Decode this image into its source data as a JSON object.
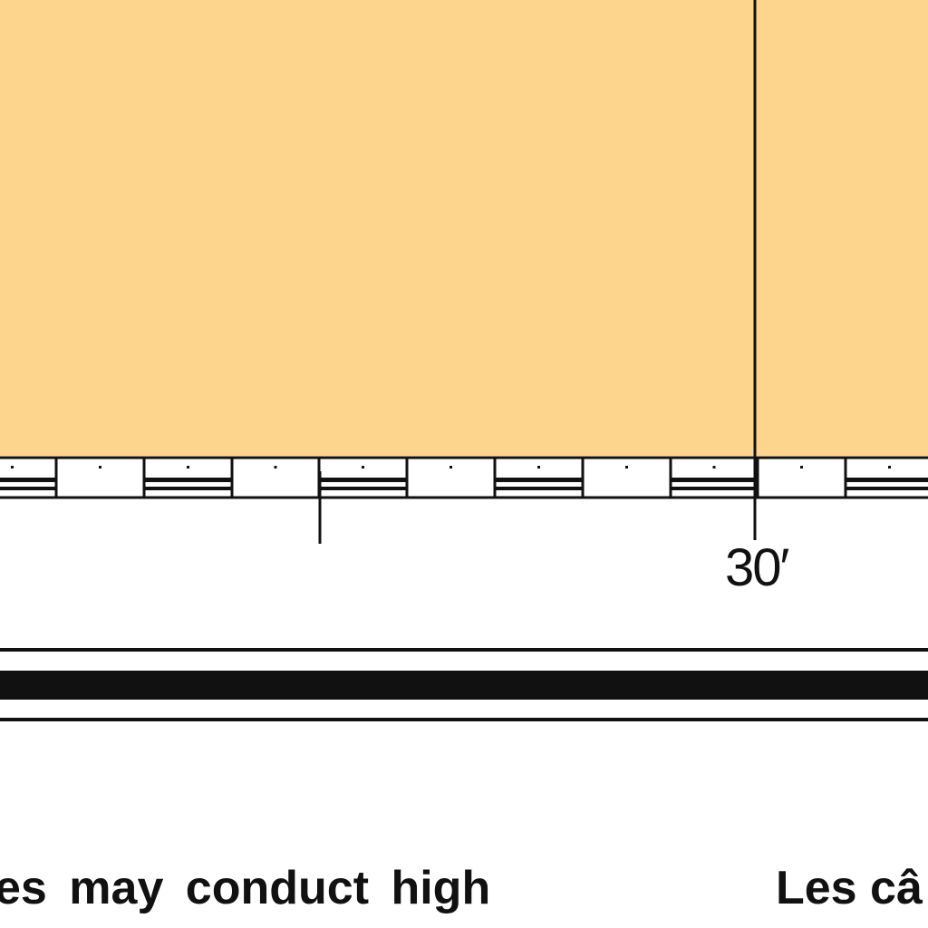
{
  "map": {
    "land_color": "#fdd58d",
    "line_color": "#111111",
    "background_color": "#ffffff"
  },
  "graticule": {
    "label": "30′"
  },
  "notes": {
    "english_fragment": "es may conduct high",
    "french_fragment": "Les câ"
  }
}
